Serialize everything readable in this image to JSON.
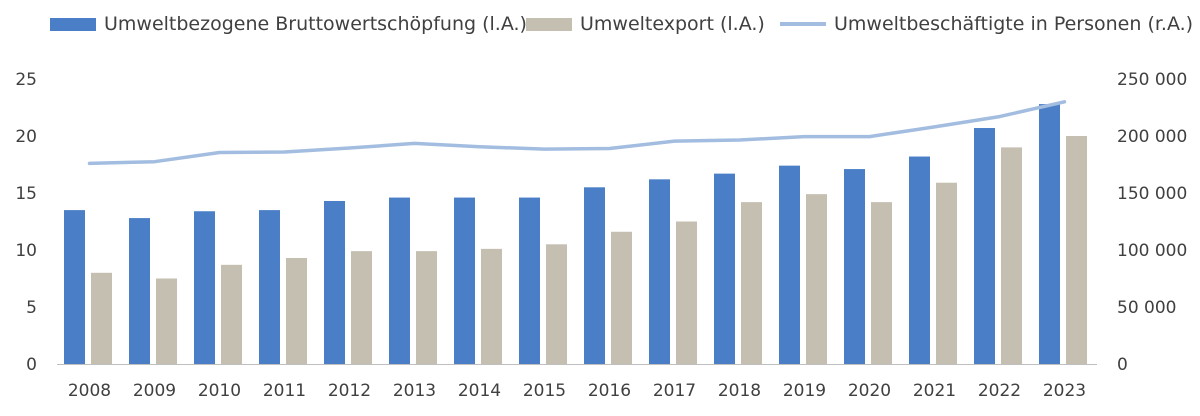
{
  "chart_data": {
    "type": "bar",
    "categories": [
      "2008",
      "2009",
      "2010",
      "2011",
      "2012",
      "2013",
      "2014",
      "2015",
      "2016",
      "2017",
      "2018",
      "2019",
      "2020",
      "2021",
      "2022",
      "2023"
    ],
    "series": [
      {
        "name": "Umweltbezogene Bruttowertschöpfung (l.A.)",
        "type": "bar",
        "axis": "left",
        "color": "#4a7fc7",
        "values": [
          13.5,
          12.8,
          13.4,
          13.5,
          14.3,
          14.6,
          14.6,
          14.6,
          15.5,
          16.2,
          16.7,
          17.4,
          17.1,
          18.2,
          20.7,
          22.8
        ]
      },
      {
        "name": "Umweltexport (l.A.)",
        "type": "bar",
        "axis": "left",
        "color": "#c5bfb2",
        "values": [
          8.0,
          7.5,
          8.7,
          9.3,
          9.9,
          9.9,
          10.1,
          10.5,
          11.6,
          12.5,
          14.2,
          14.9,
          14.2,
          15.9,
          19.0,
          20.0
        ]
      },
      {
        "name": "Umweltbeschäftigte in Personen (r.A.)",
        "type": "line",
        "axis": "right",
        "color": "#a3bde0",
        "values": [
          176000,
          177500,
          185500,
          186000,
          189500,
          193500,
          190500,
          188500,
          189000,
          195500,
          196500,
          199500,
          199500,
          208000,
          217000,
          230000
        ]
      }
    ],
    "y_left": {
      "range": [
        0,
        25
      ],
      "ticks": [
        "0",
        "5",
        "10",
        "15",
        "20",
        "25"
      ]
    },
    "y_right": {
      "range": [
        0,
        250000
      ],
      "ticks": [
        "0",
        "50 000",
        "100 000",
        "150 000",
        "200 000",
        "250 000"
      ]
    },
    "legend_position": "top",
    "grid": false
  }
}
